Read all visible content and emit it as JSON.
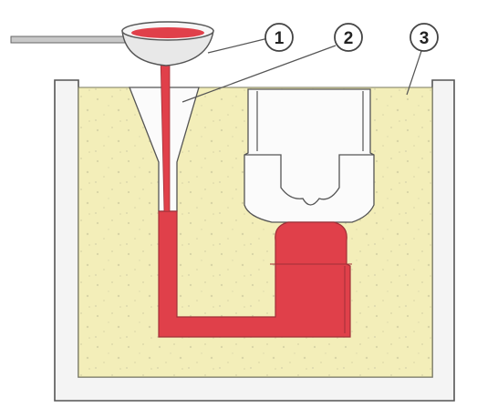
{
  "colors": {
    "background": "#ffffff",
    "flask_wall": "#f4f4f4",
    "flask_outline": "#555555",
    "sand": "#f3eeb9",
    "sand_speckle": "#d8d4a6",
    "molten_metal": "#e0404a",
    "metal_outline": "#a03038",
    "cavity_white": "#fbfbfb",
    "ladle_fill": "#e8e8e8",
    "rod": "#c8c8c8",
    "line": "#555555"
  },
  "icons": {
    "ladle": "pouring-ladle-icon",
    "rod": "ladle-handle-icon"
  },
  "callouts": [
    {
      "id": "1",
      "label": "1"
    },
    {
      "id": "2",
      "label": "2"
    },
    {
      "id": "3",
      "label": "3"
    }
  ]
}
